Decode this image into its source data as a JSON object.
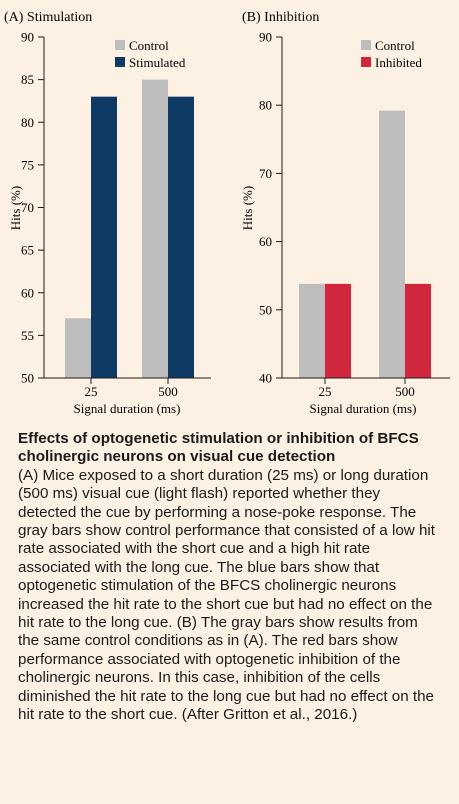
{
  "chart_data": [
    {
      "type": "bar",
      "panel_label": "(A)  Stimulation",
      "categories": [
        "25",
        "500"
      ],
      "series": [
        {
          "name": "Control",
          "values": [
            57,
            85
          ],
          "color": "#bdbdbd"
        },
        {
          "name": "Stimulated",
          "values": [
            83,
            83
          ],
          "color": "#0f3a64"
        }
      ],
      "xlabel": "Signal duration (ms)",
      "ylabel": "Hits (%)",
      "ylim": [
        50,
        90
      ],
      "yticks": [
        50,
        55,
        60,
        65,
        70,
        75,
        80,
        85,
        90
      ],
      "legend_position": "top-right",
      "grid": false
    },
    {
      "type": "bar",
      "panel_label": "(B)  Inhibition",
      "categories": [
        "25",
        "500"
      ],
      "series": [
        {
          "name": "Control",
          "values": [
            53.8,
            79.2
          ],
          "color": "#bdbdbd"
        },
        {
          "name": "Inhibited",
          "values": [
            53.8,
            53.8
          ],
          "color": "#d0273c"
        }
      ],
      "xlabel": "Signal duration (ms)",
      "ylabel": "Hits (%)",
      "ylim": [
        40,
        90
      ],
      "yticks": [
        40,
        50,
        60,
        70,
        80,
        90
      ],
      "legend_position": "top-right",
      "grid": false
    }
  ],
  "caption": {
    "title": "Effects of optogenetic stimulation or inhibition of BFCS cholinergic neurons on visual cue detection",
    "body": "(A) Mice exposed to a short duration (25 ms) or long duration (500 ms) visual cue (light flash) reported whether they detected the cue by performing a nose-poke response. The gray bars show control performance that consisted of a low hit rate associated with the short cue and a high hit rate associated with the long cue. The blue bars show that optogenetic stimulation of the BFCS cholinergic neurons increased the hit rate to the short cue but had no effect on the hit rate to the long cue. (B) The gray bars show results from the same control conditions as in (A). The red bars show performance associated with optogenetic inhibition of the cholinergic neurons. In this case, inhibition of the cells diminished the hit rate to the long cue but had no effect on the hit rate to the short cue. (After Gritton et al., 2016.)"
  }
}
